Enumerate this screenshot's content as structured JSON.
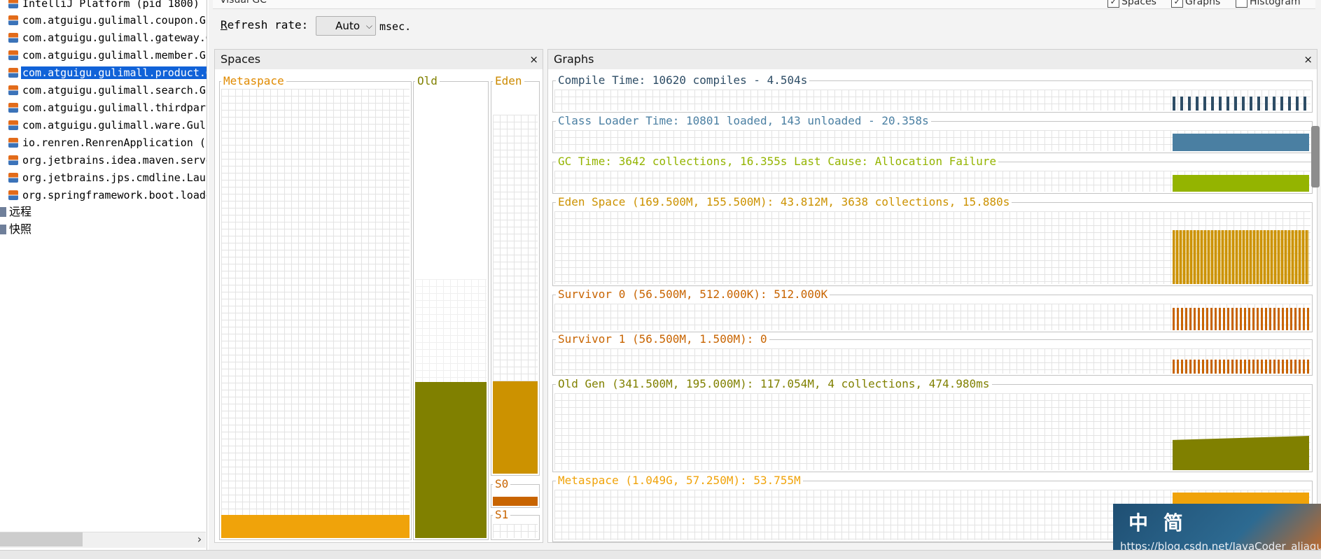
{
  "tree": {
    "items": [
      {
        "label": "IntelliJ Platform (pid 1800)"
      },
      {
        "label": "com.atguigu.gulimall.coupon.Gu"
      },
      {
        "label": "com.atguigu.gulimall.gateway.G"
      },
      {
        "label": "com.atguigu.gulimall.member.Gu"
      },
      {
        "label": "com.atguigu.gulimall.product.G",
        "selected": true
      },
      {
        "label": "com.atguigu.gulimall.search.Gu"
      },
      {
        "label": "com.atguigu.gulimall.thirdpart"
      },
      {
        "label": "com.atguigu.gulimall.ware.Gulin"
      },
      {
        "label": "io.renren.RenrenApplication (p"
      },
      {
        "label": "org.jetbrains.idea.maven.serve"
      },
      {
        "label": "org.jetbrains.jps.cmdline.Laun"
      },
      {
        "label": "org.springframework.boot.loade"
      }
    ],
    "roots": [
      {
        "label": "远程"
      },
      {
        "label": "快照"
      }
    ]
  },
  "visual_gc": {
    "title": "Visual GC",
    "checkboxes": [
      {
        "label": "Spaces",
        "checked": true
      },
      {
        "label": "Graphs",
        "checked": true
      },
      {
        "label": "Histogram",
        "checked": false
      }
    ],
    "refresh_label_underlined": "R",
    "refresh_label_rest": "efresh rate:",
    "refresh_value": "Auto",
    "refresh_unit": "msec."
  },
  "spaces_panel": {
    "title": "Spaces",
    "close": "×",
    "metaspace_label": "Metaspace",
    "old_label": "Old",
    "eden_label": "Eden",
    "s0_label": "S0",
    "s1_label": "S1",
    "colors": {
      "metaspace": "#f0a30a",
      "old": "#808000",
      "eden": "#cc9200",
      "s0": "#c86400"
    },
    "fill_fractions": {
      "metaspace": 0.05,
      "old_capacity": 0.57,
      "old_used": 0.343,
      "eden_capacity": 0.92,
      "eden_used": 0.258,
      "s0_used": 1.0,
      "s1_used": 0.0
    }
  },
  "graphs_panel": {
    "title": "Graphs",
    "close": "×",
    "graphs": [
      {
        "title": "Compile Time: 10620 compiles - 4.504s",
        "color": "#2e4d66"
      },
      {
        "title": "Class Loader Time: 10801 loaded, 143 unloaded - 20.358s",
        "color": "#4a7fa2"
      },
      {
        "title": "GC Time: 3642 collections, 16.355s  Last Cause: Allocation Failure",
        "color": "#94b400"
      },
      {
        "title": "Eden Space (169.500M, 155.500M): 43.812M, 3638 collections, 15.880s",
        "color": "#cc9200"
      },
      {
        "title": "Survivor 0 (56.500M, 512.000K): 512.000K",
        "color": "#c86400"
      },
      {
        "title": "Survivor 1 (56.500M, 1.500M): 0",
        "color": "#c86400"
      },
      {
        "title": "Old Gen (341.500M, 195.000M): 117.054M, 4 collections, 474.980ms",
        "color": "#808000"
      },
      {
        "title": "Metaspace (1.049G, 57.250M): 53.755M",
        "color": "#f0a30a"
      }
    ]
  },
  "watermark": {
    "text": "中 简",
    "url": "https://blog.csdn.net/JavaCoder_aliague"
  }
}
